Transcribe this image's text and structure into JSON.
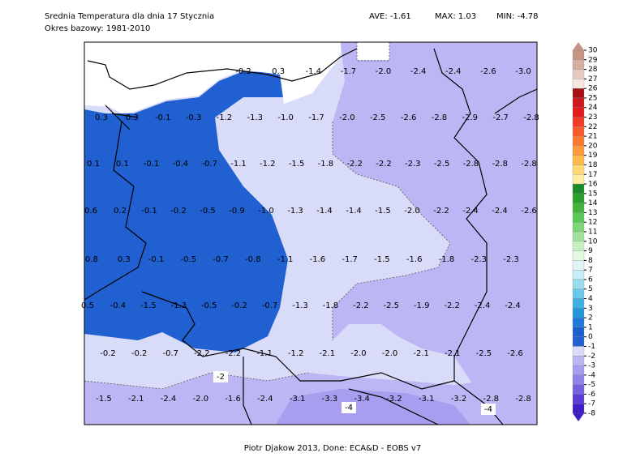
{
  "header": {
    "title": "Srednia Temperatura dla dnia 17 Stycznia",
    "subtitle": "Okres bazowy: 1981-2010",
    "ave": "AVE: -1.61",
    "max": "MAX: 1.03",
    "min": "MIN: -4.78"
  },
  "map_labels": [
    [
      "-0.2",
      "0.3",
      "-1.4",
      "-1.7",
      "-2.0",
      "-2.4",
      "-2.4",
      "-2.6",
      "-3.0"
    ],
    [
      "0.3",
      "0.3",
      "-0.1",
      "-0.3",
      "-1.2",
      "-1.3",
      "-1.0",
      "-1.7",
      "-2.0",
      "-2.5",
      "-2.6",
      "-2.8",
      "-2.9",
      "-2.7",
      "-2.8"
    ],
    [
      "0.1",
      "0.1",
      "-0.1",
      "-0.4",
      "-0.7",
      "-1.1",
      "-1.2",
      "-1.5",
      "-1.8",
      "-2.2",
      "-2.2",
      "-2.3",
      "-2.5",
      "-2.8",
      "-2.8",
      "-2.8"
    ],
    [
      "0.6",
      "0.2",
      "-0.1",
      "-0.2",
      "-0.5",
      "-0.9",
      "-1.0",
      "-1.3",
      "-1.4",
      "-1.4",
      "-1.5",
      "-2.0",
      "-2.2",
      "-2.4",
      "-2.4",
      "-2.6"
    ],
    [
      "0.8",
      "0.3",
      "-0.1",
      "-0.5",
      "-0.7",
      "-0.8",
      "-1.1",
      "-1.6",
      "-1.7",
      "-1.5",
      "-1.6",
      "-1.8",
      "-2.3",
      "-2.3"
    ],
    [
      "0.5",
      "-0.4",
      "-1.5",
      "-1.3",
      "-0.5",
      "-0.2",
      "-0.7",
      "-1.3",
      "-1.8",
      "-2.2",
      "-2.5",
      "-1.9",
      "-2.2",
      "-2.4",
      "-2.4"
    ],
    [
      "-0.2",
      "-0.2",
      "-0.7",
      "-2.2",
      "-2.2",
      "-1.1",
      "-1.2",
      "-2.1",
      "-2.0",
      "-2.0",
      "-2.1",
      "-2.1",
      "-2.5",
      "-2.6"
    ],
    [
      "-1.5",
      "-2.1",
      "-2.4",
      "-2.0",
      "-1.6",
      "-2.4",
      "-3.1",
      "-3.3",
      "-3.4",
      "-3.2",
      "-3.1",
      "-3.2",
      "-2.8",
      "-2.8"
    ]
  ],
  "contour_labels": [
    "-2",
    "-4",
    "-4"
  ],
  "colorbar": {
    "ticks": [
      30,
      29,
      28,
      27,
      26,
      25,
      24,
      23,
      22,
      21,
      20,
      19,
      18,
      17,
      16,
      15,
      14,
      13,
      12,
      11,
      10,
      9,
      8,
      7,
      6,
      5,
      4,
      3,
      2,
      1,
      0,
      -1,
      -2,
      -3,
      -4,
      -5,
      -6,
      -7,
      -8
    ],
    "colors": [
      "#c49484",
      "#d6ada0",
      "#e6cac0",
      "#f4e6e1",
      "#a50f15",
      "#cb181d",
      "#e31a1c",
      "#f03c25",
      "#f85a2a",
      "#fc7a30",
      "#fd9a3a",
      "#fdb94c",
      "#fed976",
      "#ffeda0",
      "#1b8a2a",
      "#2ca02c",
      "#41b440",
      "#5bc85a",
      "#7dd67a",
      "#a1e39c",
      "#c7f0c2",
      "#e5f8e2",
      "#e0f4f8",
      "#c6ecf6",
      "#9cdcef",
      "#6cc8e8",
      "#3fb0e0",
      "#2496dc",
      "#1f7ad8",
      "#1b5fd0",
      "#2060d0",
      "#d9dcf8",
      "#bdb6f4",
      "#a79ef0",
      "#8f84e8",
      "#7561df",
      "#5a3ed4",
      "#3e1fc4"
    ]
  },
  "footer": "Piotr Djakow 2013, Done: ECA&D - EOBS v7"
}
